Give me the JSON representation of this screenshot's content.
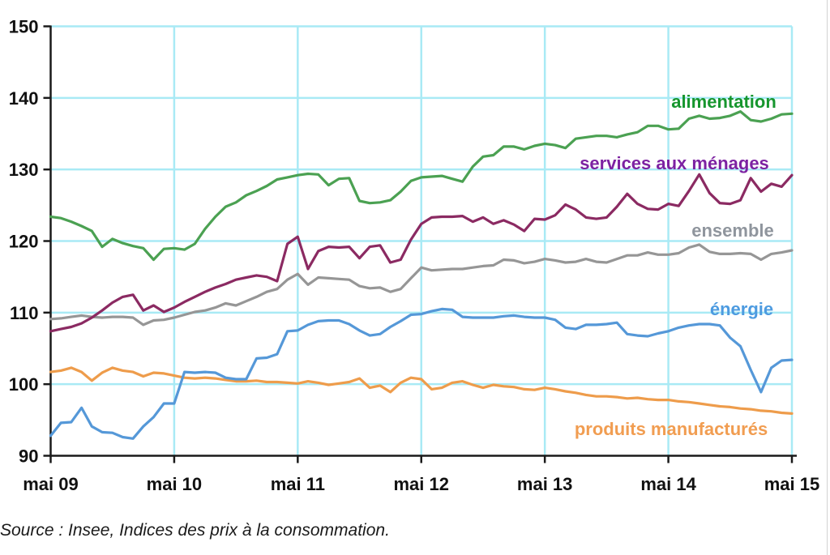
{
  "caption": {
    "text": "Source : Insee, Indices des prix à la consommation."
  },
  "chart_data": {
    "type": "line",
    "title": "",
    "xlabel": "",
    "ylabel": "",
    "x_frequency": "monthly",
    "x_start": "mai 2009",
    "x_end": "mai 2015",
    "x_tick_labels": [
      "mai 09",
      "mai 10",
      "mai 11",
      "mai 12",
      "mai 13",
      "mai 14",
      "mai 15"
    ],
    "y_ticks": [
      90,
      100,
      110,
      120,
      130,
      140,
      150
    ],
    "ylim": [
      90,
      150
    ],
    "grid": true,
    "legend_position": "labels next to lines (right side)",
    "colors": {
      "grid": "#a9eaf5",
      "axis": "#1a1a1a",
      "tick_text": "#111111"
    },
    "series": [
      {
        "key": "ensemble",
        "label": "ensemble",
        "color": "#969696",
        "label_color": "#8f959d",
        "values": [
          109.1,
          109.2,
          109.4,
          109.6,
          109.4,
          109.3,
          109.4,
          109.4,
          109.3,
          108.3,
          108.9,
          109.0,
          109.3,
          109.7,
          110.1,
          110.3,
          110.7,
          111.3,
          111.0,
          111.6,
          112.2,
          112.9,
          113.3,
          114.6,
          115.4,
          113.9,
          114.9,
          114.8,
          114.7,
          114.6,
          113.7,
          113.4,
          113.5,
          112.9,
          113.3,
          114.8,
          116.3,
          115.9,
          116.0,
          116.1,
          116.1,
          116.3,
          116.5,
          116.6,
          117.4,
          117.3,
          116.9,
          117.1,
          117.5,
          117.3,
          117.0,
          117.1,
          117.5,
          117.1,
          117.0,
          117.5,
          118.0,
          118.0,
          118.4,
          118.1,
          118.1,
          118.3,
          119.1,
          119.5,
          118.5,
          118.2,
          118.2,
          118.3,
          118.2,
          117.4,
          118.2,
          118.4,
          118.7
        ]
      },
      {
        "key": "produits",
        "label": "produits manufacturés",
        "color": "#ee9c4b",
        "label_color": "#f19d51",
        "values": [
          101.7,
          101.9,
          102.3,
          101.7,
          100.5,
          101.6,
          102.3,
          101.9,
          101.7,
          101.1,
          101.6,
          101.5,
          101.2,
          100.9,
          100.8,
          100.9,
          100.8,
          100.6,
          100.4,
          100.4,
          100.5,
          100.3,
          100.3,
          100.2,
          100.1,
          100.4,
          100.2,
          99.9,
          100.1,
          100.3,
          100.8,
          99.5,
          99.8,
          98.9,
          100.2,
          100.9,
          100.7,
          99.3,
          99.5,
          100.2,
          100.4,
          99.9,
          99.5,
          99.9,
          99.7,
          99.6,
          99.3,
          99.2,
          99.5,
          99.3,
          99.0,
          98.8,
          98.5,
          98.3,
          98.3,
          98.2,
          98.0,
          98.1,
          97.9,
          97.8,
          97.8,
          97.6,
          97.5,
          97.3,
          97.1,
          96.9,
          96.8,
          96.6,
          96.5,
          96.3,
          96.2,
          96.0,
          95.9
        ]
      },
      {
        "key": "energie",
        "label": "énergie",
        "color": "#5598d8",
        "label_color": "#4d9be0",
        "values": [
          92.8,
          94.6,
          94.7,
          96.7,
          94.1,
          93.3,
          93.2,
          92.6,
          92.4,
          94.1,
          95.4,
          97.3,
          97.3,
          101.7,
          101.6,
          101.7,
          101.6,
          100.9,
          100.7,
          100.7,
          103.6,
          103.7,
          104.2,
          107.4,
          107.5,
          108.3,
          108.8,
          108.9,
          108.9,
          108.4,
          107.5,
          106.8,
          107.0,
          108.0,
          108.8,
          109.7,
          109.8,
          110.2,
          110.5,
          110.4,
          109.4,
          109.3,
          109.3,
          109.3,
          109.5,
          109.6,
          109.4,
          109.3,
          109.3,
          109.0,
          107.9,
          107.7,
          108.3,
          108.3,
          108.4,
          108.6,
          107.0,
          106.8,
          106.7,
          107.1,
          107.4,
          107.9,
          108.2,
          108.4,
          108.4,
          108.2,
          106.5,
          105.3,
          102.0,
          98.9,
          102.3,
          103.3,
          103.4
        ]
      },
      {
        "key": "services",
        "label": "services aux ménages",
        "color": "#8b2a62",
        "label_color": "#7d22a2",
        "values": [
          107.4,
          107.7,
          108.0,
          108.5,
          109.3,
          110.3,
          111.4,
          112.2,
          112.5,
          110.3,
          111.0,
          110.1,
          110.7,
          111.5,
          112.2,
          112.9,
          113.5,
          114.0,
          114.6,
          114.9,
          115.2,
          115.0,
          114.4,
          119.6,
          120.6,
          116.1,
          118.6,
          119.2,
          119.1,
          119.2,
          117.6,
          119.2,
          119.4,
          117.0,
          117.4,
          120.2,
          122.4,
          123.3,
          123.4,
          123.4,
          123.5,
          122.7,
          123.3,
          122.4,
          122.9,
          122.3,
          121.4,
          123.1,
          123.0,
          123.6,
          125.1,
          124.4,
          123.3,
          123.1,
          123.3,
          124.8,
          126.6,
          125.2,
          124.5,
          124.4,
          125.2,
          124.9,
          127.0,
          129.3,
          126.7,
          125.3,
          125.2,
          125.7,
          128.8,
          126.9,
          128.0,
          127.6,
          129.2
        ]
      },
      {
        "key": "alimentation",
        "label": "alimentation",
        "color": "#4ba152",
        "label_color": "#17962e",
        "values": [
          123.4,
          123.2,
          122.7,
          122.1,
          121.4,
          119.2,
          120.3,
          119.7,
          119.3,
          119.0,
          117.4,
          118.9,
          119.0,
          118.8,
          119.6,
          121.7,
          123.4,
          124.8,
          125.4,
          126.4,
          127.0,
          127.7,
          128.6,
          128.9,
          129.2,
          129.4,
          129.3,
          127.8,
          128.7,
          128.8,
          125.6,
          125.3,
          125.4,
          125.7,
          126.9,
          128.4,
          128.9,
          129.0,
          129.1,
          128.7,
          128.3,
          130.4,
          131.8,
          132.0,
          133.2,
          133.2,
          132.8,
          133.3,
          133.6,
          133.4,
          133.0,
          134.3,
          134.5,
          134.7,
          134.7,
          134.5,
          134.9,
          135.2,
          136.1,
          136.1,
          135.6,
          135.7,
          137.1,
          137.5,
          137.1,
          137.2,
          137.5,
          138.1,
          136.9,
          136.7,
          137.1,
          137.7,
          137.8
        ]
      }
    ]
  }
}
